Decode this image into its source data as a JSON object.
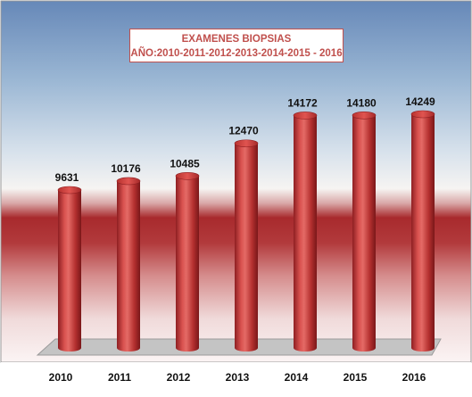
{
  "chart_data": {
    "type": "bar",
    "title": "EXAMENES BIOPSIAS",
    "subtitle": "AÑO:2010-2011-2012-2013-2014-2015 - 2016",
    "categories": [
      "2010",
      "2011",
      "2012",
      "2013",
      "2014",
      "2015",
      "2016"
    ],
    "series": [
      {
        "values": [
          9631,
          10176,
          10485,
          12470,
          14172,
          14180,
          14249
        ]
      }
    ],
    "bar_color": "#c0393b",
    "grid": false,
    "legend": "none"
  }
}
